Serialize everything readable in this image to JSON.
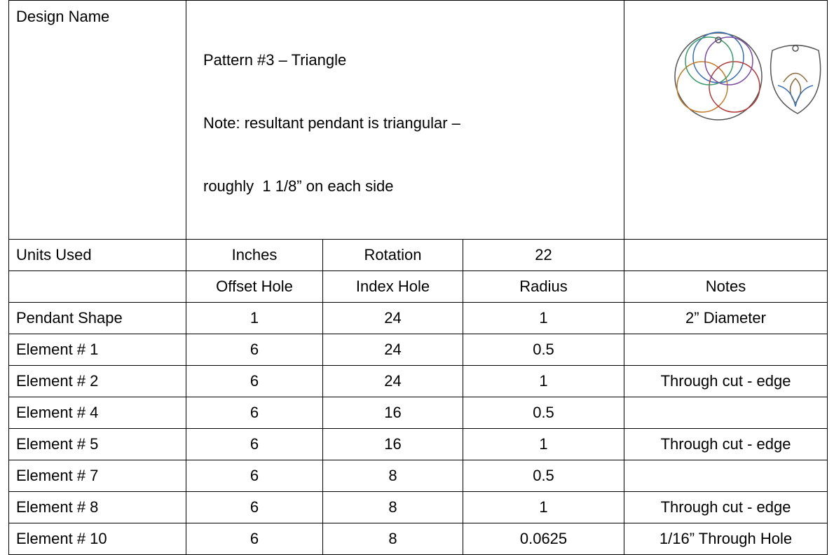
{
  "table": {
    "design": {
      "label": "Design Name",
      "title": "Pattern #3 – Triangle",
      "note": [
        "Note: resultant pendant is triangular –",
        "roughly  1 1/8” on each side"
      ]
    },
    "units_row": [
      "Units Used",
      "Inches",
      "Rotation",
      22
    ],
    "columns": [
      "Offset Hole",
      "Index Hole",
      "Radius",
      "Notes"
    ],
    "rows": [
      [
        "Pendant Shape",
        1,
        24,
        1,
        "2” Diameter"
      ],
      [
        "Element # 1",
        6,
        24,
        0.5
      ],
      [
        "Element # 2",
        6,
        24,
        1,
        "Through cut - edge"
      ],
      [
        "Element # 4",
        6,
        16,
        0.5
      ],
      [
        "Element # 5",
        6,
        16,
        1,
        "Through cut - edge"
      ],
      [
        "Element # 7",
        6,
        8,
        0.5
      ],
      [
        "Element # 8",
        6,
        8,
        1,
        "Through cut - edge"
      ],
      [
        "Element # 10",
        6,
        8,
        0.0625,
        "1/16” Through Hole"
      ]
    ]
  }
}
